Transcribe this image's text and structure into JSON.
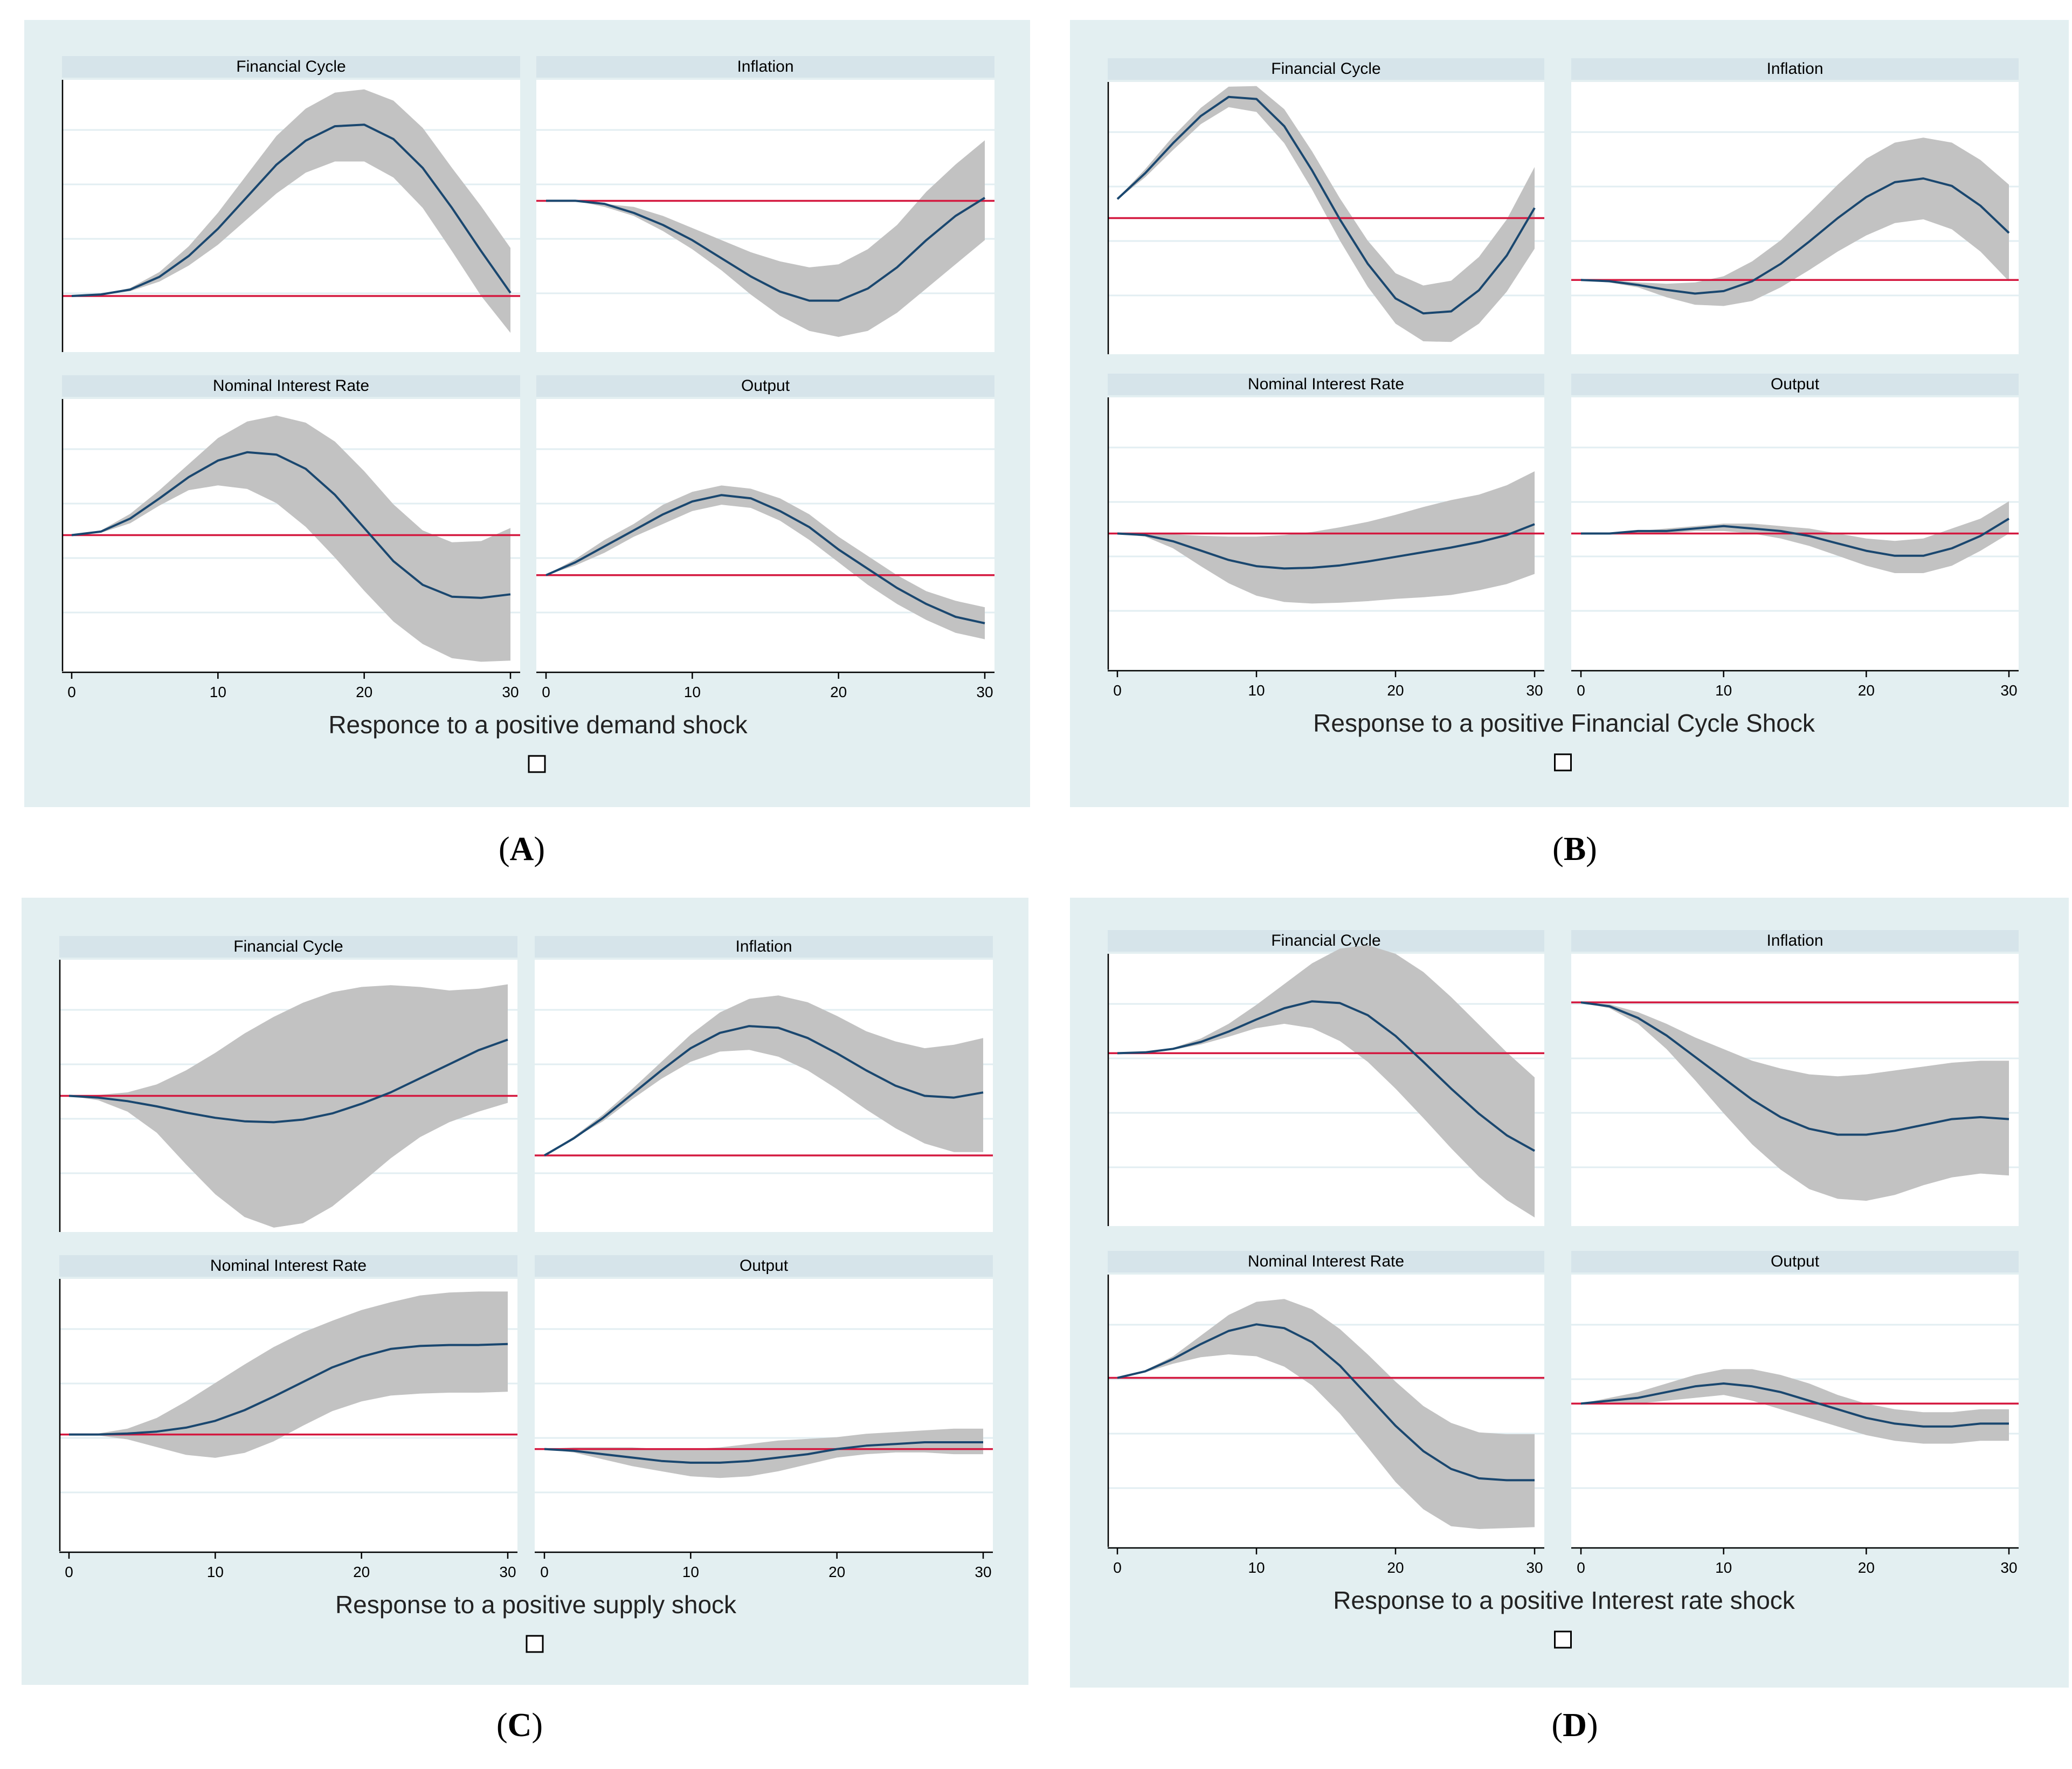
{
  "figure": {
    "panels": [
      {
        "id": "A",
        "caption": "A",
        "title": "Responce to a positive demand shock",
        "x_ticks": [
          0,
          10,
          20,
          30
        ]
      },
      {
        "id": "B",
        "caption": "B",
        "title": "Response to a positive Financial Cycle Shock",
        "x_ticks": [
          0,
          10,
          20,
          30
        ]
      },
      {
        "id": "C",
        "caption": "C",
        "title": "Response to a positive supply shock",
        "x_ticks": [
          0,
          10,
          20,
          30
        ]
      },
      {
        "id": "D",
        "caption": "D",
        "title": "Response to a positive Interest rate shock",
        "x_ticks": [
          0,
          10,
          20,
          30
        ]
      }
    ]
  },
  "colors": {
    "panel_background": "#e3eff1",
    "plot_background": "#ffffff",
    "subplot_header": "#d6e4ea",
    "band": "#c2c2c2",
    "irf_line": "#1a476f",
    "zero_line": "#d4183f",
    "grid": "#e2eef2",
    "axis": "#000000"
  },
  "chart_data": [
    {
      "panel": "A",
      "type": "area",
      "variable": "Financial Cycle",
      "xlim": [
        0,
        30
      ],
      "x": [
        0,
        2,
        4,
        6,
        8,
        10,
        12,
        14,
        16,
        18,
        20,
        22,
        24,
        26,
        28,
        30
      ],
      "response": [
        0,
        0.01,
        0.04,
        0.12,
        0.25,
        0.42,
        0.62,
        0.82,
        0.97,
        1.06,
        1.07,
        0.98,
        0.8,
        0.55,
        0.28,
        0.02
      ],
      "lower": [
        0,
        0.01,
        0.03,
        0.09,
        0.19,
        0.32,
        0.48,
        0.64,
        0.77,
        0.84,
        0.84,
        0.74,
        0.55,
        0.28,
        0,
        -0.23
      ],
      "upper": [
        0,
        0.01,
        0.05,
        0.15,
        0.31,
        0.52,
        0.76,
        1,
        1.17,
        1.27,
        1.29,
        1.22,
        1.05,
        0.8,
        0.56,
        0.3
      ]
    },
    {
      "panel": "A",
      "type": "area",
      "variable": "Inflation",
      "xlim": [
        0,
        30
      ],
      "x": [
        0,
        2,
        4,
        6,
        8,
        10,
        12,
        14,
        16,
        18,
        20,
        22,
        24,
        26,
        28,
        30
      ],
      "response": [
        0,
        0,
        -0.01,
        -0.04,
        -0.08,
        -0.13,
        -0.19,
        -0.25,
        -0.3,
        -0.33,
        -0.33,
        -0.29,
        -0.22,
        -0.13,
        -0.05,
        0.01
      ],
      "lower": [
        0,
        0,
        -0.02,
        -0.05,
        -0.1,
        -0.16,
        -0.23,
        -0.31,
        -0.38,
        -0.43,
        -0.45,
        -0.43,
        -0.37,
        -0.29,
        -0.21,
        -0.13
      ],
      "upper": [
        0,
        0,
        -0.01,
        -0.02,
        -0.05,
        -0.09,
        -0.13,
        -0.17,
        -0.2,
        -0.22,
        -0.21,
        -0.16,
        -0.08,
        0.03,
        0.12,
        0.2
      ]
    },
    {
      "panel": "A",
      "type": "area",
      "variable": "Nominal Interest Rate",
      "xlim": [
        0,
        30
      ],
      "x": [
        0,
        2,
        4,
        6,
        8,
        10,
        12,
        14,
        16,
        18,
        20,
        22,
        24,
        26,
        28,
        30
      ],
      "response": [
        0,
        0.03,
        0.14,
        0.31,
        0.49,
        0.63,
        0.7,
        0.68,
        0.56,
        0.34,
        0.06,
        -0.22,
        -0.42,
        -0.52,
        -0.53,
        -0.5
      ],
      "lower": [
        0,
        0.02,
        0.1,
        0.25,
        0.38,
        0.42,
        0.39,
        0.27,
        0.07,
        -0.19,
        -0.47,
        -0.73,
        -0.92,
        -1.04,
        -1.07,
        -1.06
      ],
      "upper": [
        0,
        0.04,
        0.18,
        0.38,
        0.6,
        0.82,
        0.96,
        1.01,
        0.95,
        0.79,
        0.54,
        0.26,
        0.04,
        -0.06,
        -0.05,
        0.06
      ]
    },
    {
      "panel": "A",
      "type": "area",
      "variable": "Output",
      "xlim": [
        0,
        30
      ],
      "x": [
        0,
        2,
        4,
        6,
        8,
        10,
        12,
        14,
        16,
        18,
        20,
        22,
        24,
        26,
        28,
        30
      ],
      "response": [
        0,
        0.04,
        0.09,
        0.14,
        0.19,
        0.23,
        0.25,
        0.24,
        0.2,
        0.15,
        0.08,
        0.02,
        -0.04,
        -0.09,
        -0.13,
        -0.15
      ],
      "lower": [
        0,
        0.03,
        0.07,
        0.12,
        0.16,
        0.2,
        0.22,
        0.21,
        0.17,
        0.11,
        0.04,
        -0.03,
        -0.09,
        -0.14,
        -0.18,
        -0.2
      ],
      "upper": [
        0,
        0.05,
        0.11,
        0.16,
        0.22,
        0.26,
        0.28,
        0.27,
        0.24,
        0.19,
        0.12,
        0.06,
        0,
        -0.05,
        -0.08,
        -0.1
      ]
    },
    {
      "panel": "B",
      "type": "area",
      "variable": "Financial Cycle",
      "xlim": [
        0,
        30
      ],
      "x": [
        0,
        2,
        4,
        6,
        8,
        10,
        12,
        14,
        16,
        18,
        20,
        22,
        24,
        26,
        28,
        30
      ],
      "response": [
        0.28,
        0.66,
        1.1,
        1.5,
        1.78,
        1.75,
        1.35,
        0.7,
        -0.02,
        -0.67,
        -1.18,
        -1.4,
        -1.37,
        -1.06,
        -0.55,
        0.15
      ],
      "lower": [
        0.27,
        0.6,
        1,
        1.38,
        1.63,
        1.56,
        1.1,
        0.42,
        -0.33,
        -1.01,
        -1.55,
        -1.81,
        -1.82,
        -1.55,
        -1.08,
        -0.45
      ],
      "upper": [
        0.29,
        0.72,
        1.2,
        1.62,
        1.93,
        1.94,
        1.6,
        0.98,
        0.29,
        -0.33,
        -0.81,
        -0.99,
        -0.92,
        -0.57,
        -0.02,
        0.75
      ]
    },
    {
      "panel": "B",
      "type": "area",
      "variable": "Inflation",
      "xlim": [
        0,
        30
      ],
      "x": [
        0,
        2,
        4,
        6,
        8,
        10,
        12,
        14,
        16,
        18,
        20,
        22,
        24,
        26,
        28,
        30
      ],
      "response": [
        0,
        -0.01,
        -0.04,
        -0.08,
        -0.11,
        -0.09,
        -0.01,
        0.13,
        0.31,
        0.5,
        0.67,
        0.79,
        0.82,
        0.76,
        0.6,
        0.38
      ],
      "lower": [
        0,
        -0.02,
        -0.06,
        -0.14,
        -0.2,
        -0.21,
        -0.17,
        -0.06,
        0.08,
        0.23,
        0.36,
        0.46,
        0.49,
        0.41,
        0.23,
        -0.01
      ],
      "upper": [
        0,
        0,
        -0.02,
        -0.03,
        -0.02,
        0.03,
        0.15,
        0.32,
        0.54,
        0.77,
        0.98,
        1.11,
        1.15,
        1.11,
        0.97,
        0.77
      ]
    },
    {
      "panel": "B",
      "type": "area",
      "variable": "Nominal Interest Rate",
      "xlim": [
        0,
        30
      ],
      "x": [
        0,
        2,
        4,
        6,
        8,
        10,
        12,
        14,
        16,
        18,
        20,
        22,
        24,
        26,
        28,
        30
      ],
      "response": [
        0,
        -0.02,
        -0.1,
        -0.22,
        -0.34,
        -0.42,
        -0.45,
        -0.44,
        -0.41,
        -0.36,
        -0.3,
        -0.24,
        -0.18,
        -0.11,
        -0.02,
        0.12
      ],
      "lower": [
        0,
        -0.04,
        -0.19,
        -0.42,
        -0.64,
        -0.8,
        -0.88,
        -0.9,
        -0.89,
        -0.87,
        -0.84,
        -0.82,
        -0.79,
        -0.73,
        -0.65,
        -0.52
      ],
      "upper": [
        0,
        0,
        -0.01,
        -0.03,
        -0.04,
        -0.04,
        -0.02,
        0.02,
        0.08,
        0.15,
        0.24,
        0.34,
        0.43,
        0.5,
        0.62,
        0.8
      ]
    },
    {
      "panel": "B",
      "type": "area",
      "variable": "Output",
      "xlim": [
        0,
        30
      ],
      "x": [
        0,
        2,
        4,
        6,
        8,
        10,
        12,
        14,
        16,
        18,
        20,
        22,
        24,
        26,
        28,
        30
      ],
      "response": [
        0,
        0,
        0.01,
        0.01,
        0.02,
        0.03,
        0.02,
        0.01,
        -0.01,
        -0.04,
        -0.07,
        -0.09,
        -0.09,
        -0.06,
        -0.01,
        0.06
      ],
      "lower": [
        0,
        0,
        0,
        0,
        0.01,
        0.01,
        0,
        -0.02,
        -0.05,
        -0.09,
        -0.13,
        -0.16,
        -0.16,
        -0.13,
        -0.07,
        0
      ],
      "upper": [
        0,
        0,
        0.01,
        0.02,
        0.03,
        0.04,
        0.04,
        0.03,
        0.02,
        0,
        -0.02,
        -0.03,
        -0.02,
        0.02,
        0.06,
        0.13
      ]
    },
    {
      "panel": "C",
      "type": "area",
      "variable": "Financial Cycle",
      "xlim": [
        0,
        30
      ],
      "x": [
        0,
        2,
        4,
        6,
        8,
        10,
        12,
        14,
        16,
        18,
        20,
        22,
        24,
        26,
        28,
        30
      ],
      "response": [
        0,
        -0.02,
        -0.06,
        -0.12,
        -0.19,
        -0.25,
        -0.29,
        -0.3,
        -0.27,
        -0.2,
        -0.09,
        0.04,
        0.2,
        0.36,
        0.52,
        0.64
      ],
      "lower": [
        0,
        -0.05,
        -0.18,
        -0.42,
        -0.78,
        -1.12,
        -1.38,
        -1.5,
        -1.45,
        -1.26,
        -0.99,
        -0.71,
        -0.47,
        -0.3,
        -0.18,
        -0.08
      ],
      "upper": [
        0,
        0.01,
        0.04,
        0.13,
        0.29,
        0.49,
        0.71,
        0.9,
        1.06,
        1.18,
        1.24,
        1.26,
        1.24,
        1.2,
        1.22,
        1.27
      ]
    },
    {
      "panel": "C",
      "type": "area",
      "variable": "Inflation",
      "xlim": [
        0,
        30
      ],
      "x": [
        0,
        2,
        4,
        6,
        8,
        10,
        12,
        14,
        16,
        18,
        20,
        22,
        24,
        26,
        28,
        30
      ],
      "response": [
        0,
        0.1,
        0.22,
        0.36,
        0.5,
        0.63,
        0.72,
        0.76,
        0.75,
        0.69,
        0.6,
        0.5,
        0.41,
        0.35,
        0.34,
        0.37
      ],
      "lower": [
        0,
        0.1,
        0.2,
        0.33,
        0.45,
        0.55,
        0.61,
        0.62,
        0.58,
        0.5,
        0.39,
        0.27,
        0.16,
        0.07,
        0.02,
        0.02
      ],
      "upper": [
        0,
        0.11,
        0.24,
        0.39,
        0.55,
        0.71,
        0.84,
        0.92,
        0.94,
        0.9,
        0.82,
        0.73,
        0.67,
        0.63,
        0.65,
        0.69
      ]
    },
    {
      "panel": "C",
      "type": "area",
      "variable": "Nominal Interest Rate",
      "xlim": [
        0,
        30
      ],
      "x": [
        0,
        2,
        4,
        6,
        8,
        10,
        12,
        14,
        16,
        18,
        20,
        22,
        24,
        26,
        28,
        30
      ],
      "response": [
        0,
        0,
        0.01,
        0.03,
        0.07,
        0.14,
        0.25,
        0.39,
        0.54,
        0.69,
        0.8,
        0.88,
        0.91,
        0.92,
        0.92,
        0.93
      ],
      "lower": [
        0,
        -0.01,
        -0.05,
        -0.13,
        -0.21,
        -0.24,
        -0.19,
        -0.07,
        0.09,
        0.24,
        0.34,
        0.4,
        0.42,
        0.43,
        0.43,
        0.44
      ],
      "upper": [
        0,
        0.01,
        0.06,
        0.17,
        0.34,
        0.53,
        0.72,
        0.9,
        1.05,
        1.17,
        1.28,
        1.36,
        1.43,
        1.46,
        1.47,
        1.47
      ]
    },
    {
      "panel": "C",
      "type": "area",
      "variable": "Output",
      "xlim": [
        0,
        30
      ],
      "x": [
        0,
        2,
        4,
        6,
        8,
        10,
        12,
        14,
        16,
        18,
        20,
        22,
        24,
        26,
        28,
        30
      ],
      "response": [
        0,
        -0.01,
        -0.03,
        -0.05,
        -0.07,
        -0.08,
        -0.08,
        -0.07,
        -0.05,
        -0.03,
        0,
        0.02,
        0.03,
        0.04,
        0.04,
        0.04
      ],
      "lower": [
        0,
        -0.02,
        -0.06,
        -0.1,
        -0.13,
        -0.16,
        -0.17,
        -0.16,
        -0.13,
        -0.09,
        -0.05,
        -0.03,
        -0.02,
        -0.02,
        -0.03,
        -0.03
      ],
      "upper": [
        0,
        0.01,
        0.01,
        0.01,
        0,
        0,
        0.01,
        0.03,
        0.05,
        0.06,
        0.07,
        0.09,
        0.1,
        0.11,
        0.12,
        0.12
      ]
    },
    {
      "panel": "D",
      "type": "area",
      "variable": "Financial Cycle",
      "xlim": [
        0,
        30
      ],
      "x": [
        0,
        2,
        4,
        6,
        8,
        10,
        12,
        14,
        16,
        18,
        20,
        22,
        24,
        26,
        28,
        30
      ],
      "response": [
        0,
        0.01,
        0.05,
        0.13,
        0.25,
        0.39,
        0.52,
        0.6,
        0.58,
        0.44,
        0.2,
        -0.1,
        -0.41,
        -0.7,
        -0.95,
        -1.13
      ],
      "lower": [
        0,
        0.01,
        0.04,
        0.1,
        0.19,
        0.29,
        0.34,
        0.29,
        0.14,
        -0.1,
        -0.41,
        -0.75,
        -1.1,
        -1.43,
        -1.7,
        -1.9
      ],
      "upper": [
        0,
        0.01,
        0.06,
        0.17,
        0.34,
        0.56,
        0.8,
        1.04,
        1.21,
        1.25,
        1.15,
        0.94,
        0.65,
        0.33,
        0.01,
        -0.28
      ]
    },
    {
      "panel": "D",
      "type": "area",
      "variable": "Inflation",
      "xlim": [
        0,
        30
      ],
      "x": [
        0,
        2,
        4,
        6,
        8,
        10,
        12,
        14,
        16,
        18,
        20,
        22,
        24,
        26,
        28,
        30
      ],
      "response": [
        0,
        -0.02,
        -0.08,
        -0.17,
        -0.28,
        -0.39,
        -0.5,
        -0.59,
        -0.65,
        -0.68,
        -0.68,
        -0.66,
        -0.63,
        -0.6,
        -0.59,
        -0.6
      ],
      "lower": [
        0,
        -0.03,
        -0.11,
        -0.24,
        -0.4,
        -0.57,
        -0.73,
        -0.86,
        -0.96,
        -1.01,
        -1.02,
        -0.99,
        -0.94,
        -0.9,
        -0.88,
        -0.89
      ],
      "upper": [
        0,
        -0.01,
        -0.05,
        -0.11,
        -0.18,
        -0.24,
        -0.3,
        -0.34,
        -0.37,
        -0.38,
        -0.37,
        -0.35,
        -0.33,
        -0.31,
        -0.3,
        -0.3
      ]
    },
    {
      "panel": "D",
      "type": "area",
      "variable": "Nominal Interest Rate",
      "xlim": [
        0,
        30
      ],
      "x": [
        0,
        2,
        4,
        6,
        8,
        10,
        12,
        14,
        16,
        18,
        20,
        22,
        24,
        26,
        28,
        30
      ],
      "response": [
        0,
        0.07,
        0.2,
        0.36,
        0.5,
        0.57,
        0.53,
        0.38,
        0.13,
        -0.19,
        -0.51,
        -0.78,
        -0.97,
        -1.07,
        -1.09,
        -1.09
      ],
      "lower": [
        0,
        0.06,
        0.15,
        0.22,
        0.25,
        0.23,
        0.12,
        -0.08,
        -0.38,
        -0.74,
        -1.11,
        -1.4,
        -1.58,
        -1.61,
        -1.6,
        -1.59
      ],
      "upper": [
        0,
        0.08,
        0.23,
        0.45,
        0.67,
        0.81,
        0.84,
        0.73,
        0.52,
        0.25,
        -0.04,
        -0.3,
        -0.48,
        -0.58,
        -0.6,
        -0.6
      ]
    },
    {
      "panel": "D",
      "type": "area",
      "variable": "Output",
      "xlim": [
        0,
        30
      ],
      "x": [
        0,
        2,
        4,
        6,
        8,
        10,
        12,
        14,
        16,
        18,
        20,
        22,
        24,
        26,
        28,
        30
      ],
      "response": [
        0,
        0.01,
        0.02,
        0.04,
        0.06,
        0.07,
        0.06,
        0.04,
        0.01,
        -0.02,
        -0.05,
        -0.07,
        -0.08,
        -0.08,
        -0.07,
        -0.07
      ],
      "lower": [
        0,
        0,
        0,
        0.01,
        0.02,
        0.03,
        0.01,
        -0.02,
        -0.05,
        -0.08,
        -0.11,
        -0.13,
        -0.14,
        -0.14,
        -0.13,
        -0.13
      ],
      "upper": [
        0,
        0.02,
        0.04,
        0.07,
        0.1,
        0.12,
        0.12,
        0.1,
        0.07,
        0.03,
        0,
        -0.02,
        -0.03,
        -0.03,
        -0.02,
        -0.02
      ]
    }
  ]
}
